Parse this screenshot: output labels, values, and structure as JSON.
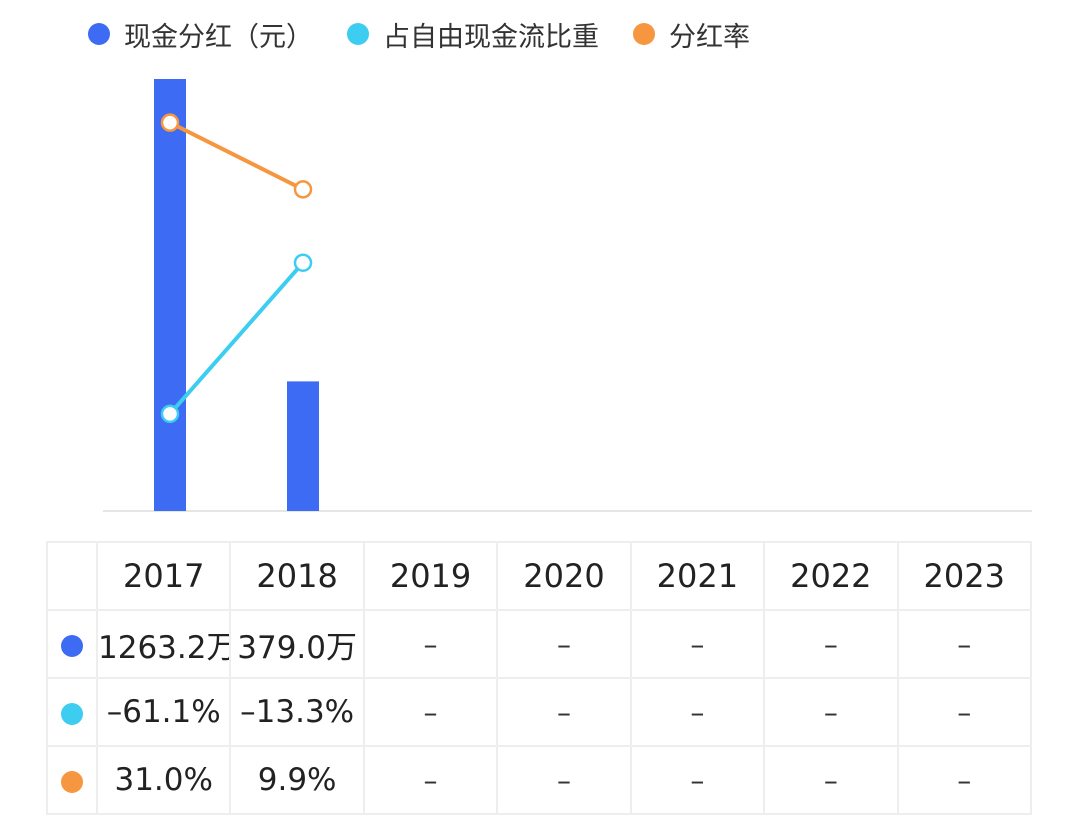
{
  "legend": [
    {
      "label": "现金分红（元）",
      "color": "#3D6BF4"
    },
    {
      "label": "占自由现金流比重",
      "color": "#3DCDF0"
    },
    {
      "label": "分红率",
      "color": "#F6963F"
    }
  ],
  "table": {
    "years": [
      "2017",
      "2018",
      "2019",
      "2020",
      "2021",
      "2022",
      "2023"
    ],
    "rows": [
      {
        "color": "#3D6BF4",
        "cells": [
          "1263.2万",
          "379.0万",
          "–",
          "–",
          "–",
          "–",
          "–"
        ]
      },
      {
        "color": "#3DCDF0",
        "cells": [
          "–61.1%",
          "–13.3%",
          "–",
          "–",
          "–",
          "–",
          "–"
        ]
      },
      {
        "color": "#F6963F",
        "cells": [
          "31.0%",
          "9.9%",
          "–",
          "–",
          "–",
          "–",
          "–"
        ]
      }
    ]
  },
  "chart_data": {
    "type": "bar",
    "categories": [
      "2017",
      "2018",
      "2019",
      "2020",
      "2021",
      "2022",
      "2023"
    ],
    "series": [
      {
        "name": "现金分红（元）",
        "type": "bar",
        "color": "#3D6BF4",
        "unit": "元",
        "values": [
          12632000,
          3790000,
          null,
          null,
          null,
          null,
          null
        ]
      },
      {
        "name": "占自由现金流比重",
        "type": "line",
        "color": "#3DCDF0",
        "unit": "%",
        "values": [
          -61.1,
          -13.3,
          null,
          null,
          null,
          null,
          null
        ]
      },
      {
        "name": "分红率",
        "type": "line",
        "color": "#F6963F",
        "unit": "%",
        "values": [
          31.0,
          9.9,
          null,
          null,
          null,
          null,
          null
        ]
      }
    ],
    "legend_position": "top-left",
    "grid": false
  }
}
